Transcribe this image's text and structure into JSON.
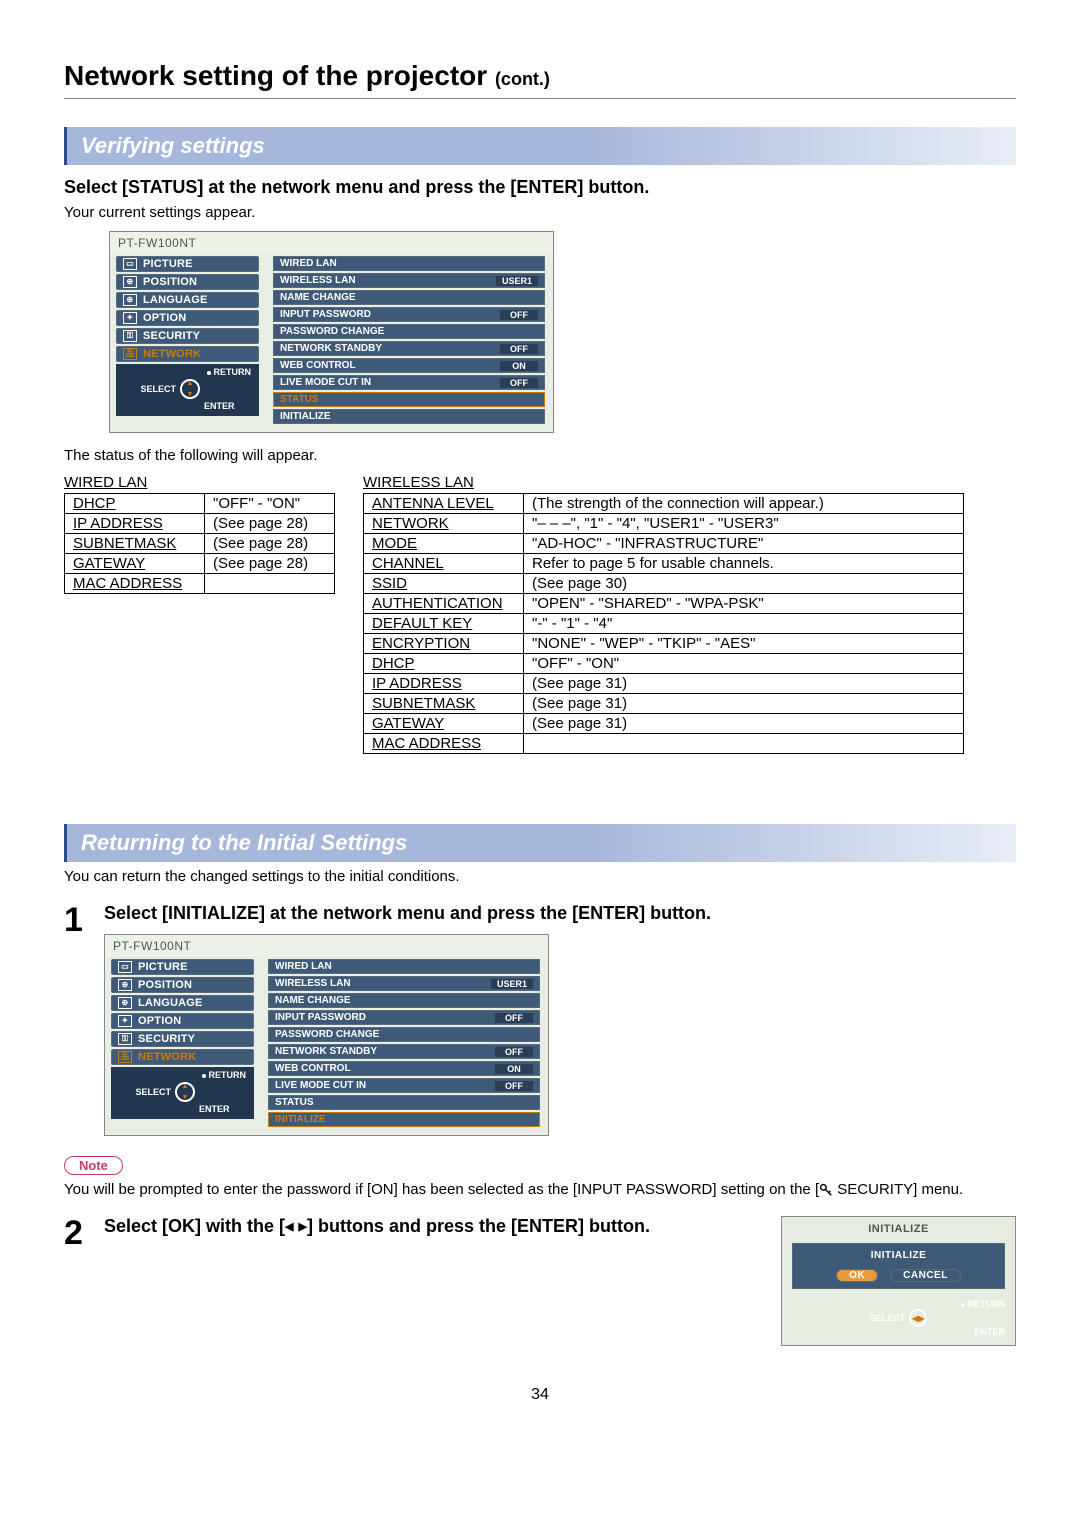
{
  "colors": {
    "section_bar_bg": "#a7b7db",
    "section_bar_text": "#ffffff",
    "gradient_bar_from": "#2b4a8a",
    "gradient_bar_to": "#dbe3f2",
    "osd_tab_bg": "#3f5a78",
    "osd_tab_sel_text": "#cc7a00",
    "osd_item_bg": "#3f5a78",
    "osd_badge_bg": "#2b3e57",
    "osd_left_nav_bg": "#22364f",
    "note_pill_border": "#c73a6b",
    "note_pill_text": "#c73a6b",
    "init_ok_bg": "#e89a3c"
  },
  "page_title_main": "Network setting of the projector ",
  "page_title_cont": "(cont.)",
  "section_verifying": "Verifying settings",
  "verify_instruction": "Select [STATUS] at the network menu and press the [ENTER] button.",
  "verify_sub": "Your current settings appear.",
  "status_intro": "The status of the following will appear.",
  "osd_model": "PT-FW100NT",
  "osd_left_tabs": [
    {
      "icon": "▭",
      "label": "PICTURE"
    },
    {
      "icon": "⊕",
      "label": "POSITION"
    },
    {
      "icon": "⊕",
      "label": "LANGUAGE"
    },
    {
      "icon": "✦",
      "label": "OPTION"
    },
    {
      "icon": "⚿",
      "label": "SECURITY"
    },
    {
      "icon": "品",
      "label": "NETWORK"
    }
  ],
  "osd_nav": {
    "return": "RETURN",
    "select": "SELECT",
    "enter": "ENTER"
  },
  "osd_right_items_status": [
    {
      "label": "WIRED LAN",
      "value": ""
    },
    {
      "label": "WIRELESS LAN",
      "value": "USER1"
    },
    {
      "label": "NAME CHANGE",
      "value": ""
    },
    {
      "label": "INPUT PASSWORD",
      "value": "OFF"
    },
    {
      "label": "PASSWORD CHANGE",
      "value": ""
    },
    {
      "label": "NETWORK STANDBY",
      "value": "OFF"
    },
    {
      "label": "WEB CONTROL",
      "value": "ON"
    },
    {
      "label": "LIVE MODE CUT IN",
      "value": "OFF"
    },
    {
      "label": "STATUS",
      "value": "",
      "sel": true
    },
    {
      "label": "INITIALIZE",
      "value": ""
    }
  ],
  "osd_right_items_init": [
    {
      "label": "WIRED LAN",
      "value": ""
    },
    {
      "label": "WIRELESS LAN",
      "value": "USER1"
    },
    {
      "label": "NAME CHANGE",
      "value": ""
    },
    {
      "label": "INPUT PASSWORD",
      "value": "OFF"
    },
    {
      "label": "PASSWORD CHANGE",
      "value": ""
    },
    {
      "label": "NETWORK STANDBY",
      "value": "OFF"
    },
    {
      "label": "WEB CONTROL",
      "value": "ON"
    },
    {
      "label": "LIVE MODE CUT IN",
      "value": "OFF"
    },
    {
      "label": "STATUS",
      "value": ""
    },
    {
      "label": "INITIALIZE",
      "value": "",
      "sel": true
    }
  ],
  "wired_caption": "WIRED LAN",
  "wired_rows": [
    [
      "DHCP",
      "\"OFF\" - \"ON\""
    ],
    [
      "IP ADDRESS",
      "(See page 28)"
    ],
    [
      "SUBNETMASK",
      "(See page 28)"
    ],
    [
      "GATEWAY",
      "(See page 28)"
    ],
    [
      "MAC ADDRESS",
      ""
    ]
  ],
  "wired_col_widths": [
    "140px",
    "130px"
  ],
  "wireless_caption": "WIRELESS LAN",
  "wireless_rows": [
    [
      "ANTENNA LEVEL",
      "(The strength of the connection will appear.)"
    ],
    [
      "NETWORK",
      "\"– – –\", \"1\" - \"4\", \"USER1\" - \"USER3\""
    ],
    [
      "MODE",
      "\"AD-HOC\" - \"INFRASTRUCTURE\""
    ],
    [
      "CHANNEL",
      "Refer to page 5 for usable channels."
    ],
    [
      "SSID",
      "(See page 30)"
    ],
    [
      "AUTHENTICATION",
      "\"OPEN\" - \"SHARED\" - \"WPA-PSK\""
    ],
    [
      "DEFAULT KEY",
      "\"-\" - \"1\" - \"4\""
    ],
    [
      "ENCRYPTION",
      "\"NONE\" - \"WEP\" - \"TKIP\" - \"AES\""
    ],
    [
      "DHCP",
      "\"OFF\" - \"ON\""
    ],
    [
      "IP ADDRESS",
      "(See page 31)"
    ],
    [
      "SUBNETMASK",
      "(See page 31)"
    ],
    [
      "GATEWAY",
      "(See page 31)"
    ],
    [
      "MAC ADDRESS",
      ""
    ]
  ],
  "wireless_col_widths": [
    "160px",
    "440px"
  ],
  "section_returning": "Returning to the Initial Settings",
  "returning_intro": "You can return the changed settings to the initial conditions.",
  "step1_num": "1",
  "step1_text": "Select [INITIALIZE] at the network menu and press the [ENTER] button.",
  "note_label": "Note",
  "note_text_pre": "You will be prompted to enter the password if [ON] has been selected as the [INPUT PASSWORD] setting on the [",
  "note_text_post": " SECURITY] menu.",
  "step2_num": "2",
  "step2_text_a": "Select [OK] with the [",
  "step2_text_b": "] buttons and press the [ENTER] button.",
  "init_dialog": {
    "header": "INITIALIZE",
    "sub": "INITIALIZE",
    "ok": "OK",
    "cancel": "CANCEL",
    "return": "RETURN",
    "select": "SELECT",
    "enter": "ENTER"
  },
  "page_number": "34"
}
